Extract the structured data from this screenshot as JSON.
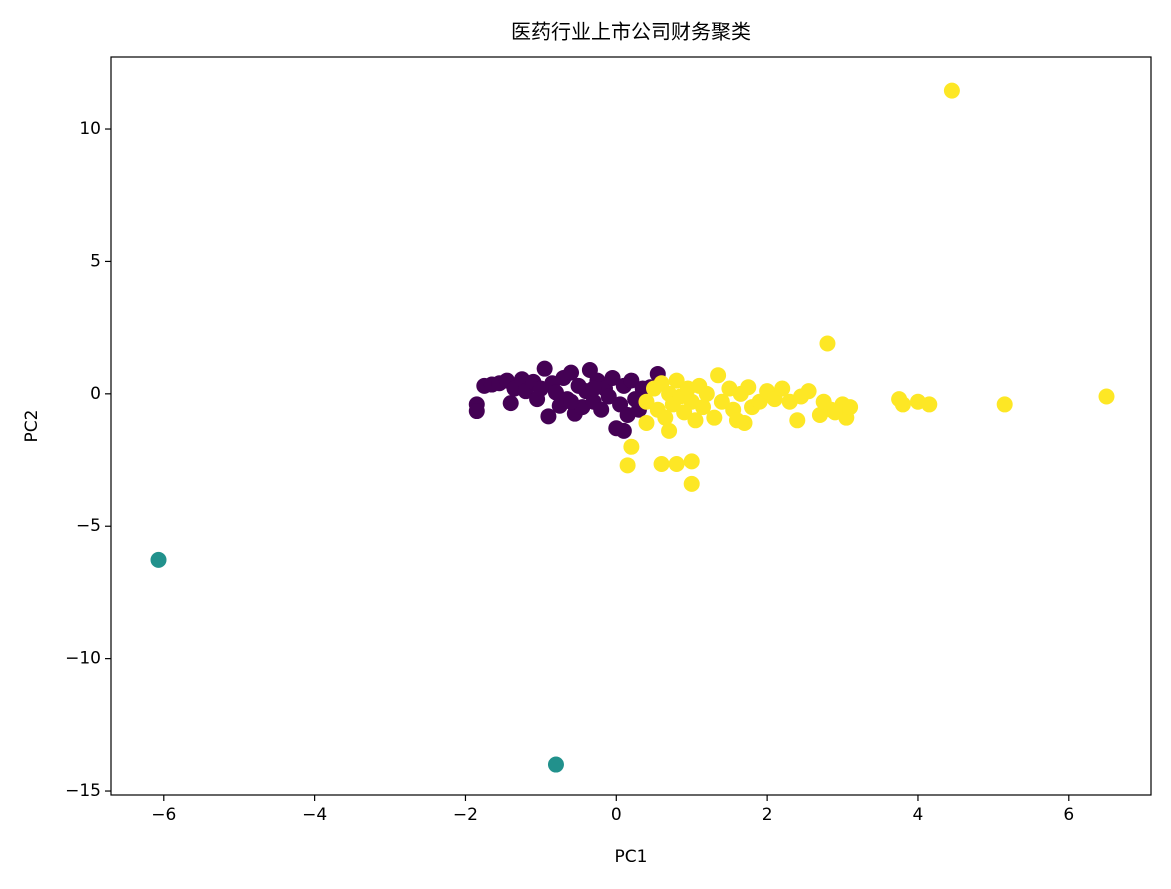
{
  "chart_data": {
    "type": "scatter",
    "title": "医药行业上市公司财务聚类",
    "x_label": "PC1",
    "y_label": "PC2",
    "xlim": [
      -6.7,
      7.09
    ],
    "ylim": [
      -15.15,
      12.72
    ],
    "xticks": [
      {
        "value": -6,
        "label": "−6"
      },
      {
        "value": -4,
        "label": "−4"
      },
      {
        "value": -2,
        "label": "−2"
      },
      0,
      2,
      4,
      6
    ],
    "yticks": [
      {
        "value": -15,
        "label": "−15"
      },
      {
        "value": -10,
        "label": "−10"
      },
      {
        "value": -5,
        "label": "−5"
      },
      0,
      5,
      10
    ],
    "series": [
      {
        "color": "#440154",
        "x": [
          -1.85,
          -1.85,
          -1.75,
          -1.65,
          -1.55,
          -1.45,
          -1.4,
          -1.35,
          -1.25,
          -1.2,
          -1.1,
          -1.05,
          -0.95,
          -0.9,
          -0.85,
          -0.8,
          -0.75,
          -0.7,
          -0.65,
          -0.6,
          -0.55,
          -0.5,
          -0.45,
          -0.4,
          -0.35,
          -0.3,
          -0.25,
          -0.2,
          -0.15,
          -0.1,
          -0.05,
          0.0,
          0.05,
          0.1,
          0.15,
          0.2,
          0.25,
          0.3,
          0.35,
          0.45,
          0.55,
          0.1,
          -0.6,
          -1.0,
          -0.3
        ],
        "values": [
          -0.4,
          -0.65,
          0.3,
          0.35,
          0.4,
          0.5,
          -0.35,
          0.2,
          0.55,
          0.1,
          0.45,
          -0.2,
          0.95,
          -0.85,
          0.4,
          0.05,
          -0.45,
          0.6,
          -0.2,
          0.8,
          -0.75,
          0.3,
          -0.5,
          0.1,
          0.9,
          -0.3,
          0.5,
          -0.6,
          0.2,
          -0.1,
          0.6,
          -1.3,
          -0.4,
          0.3,
          -0.8,
          0.5,
          -0.2,
          -0.6,
          0.2,
          0.25,
          0.75,
          -1.4,
          -0.3,
          0.2,
          0.2
        ]
      },
      {
        "color": "#21918c",
        "x": [
          -6.07,
          -0.8
        ],
        "values": [
          -6.27,
          -14.0
        ]
      },
      {
        "color": "#fde725",
        "x": [
          4.45,
          2.8,
          6.5,
          5.15,
          3.75,
          3.8,
          4.0,
          4.15,
          0.15,
          0.2,
          0.6,
          0.8,
          1.0,
          1.0,
          0.7,
          2.4,
          3.05,
          0.4,
          0.4,
          0.5,
          0.55,
          0.6,
          0.65,
          0.7,
          0.75,
          0.8,
          0.85,
          0.9,
          0.95,
          1.0,
          1.05,
          1.1,
          1.15,
          1.2,
          1.3,
          1.35,
          1.4,
          1.5,
          1.55,
          1.6,
          1.65,
          1.7,
          1.75,
          1.8,
          1.9,
          2.0,
          2.1,
          2.2,
          2.3,
          2.45,
          2.55,
          2.7,
          2.75,
          2.85,
          3.0,
          3.1,
          2.9
        ],
        "values": [
          11.45,
          1.9,
          -0.1,
          -0.4,
          -0.2,
          -0.4,
          -0.3,
          -0.4,
          -2.7,
          -2.0,
          -2.65,
          -2.65,
          -2.55,
          -3.4,
          -1.4,
          -1.0,
          -0.9,
          -0.3,
          -1.1,
          0.2,
          -0.6,
          0.4,
          -0.9,
          0.0,
          -0.4,
          0.5,
          -0.1,
          -0.7,
          0.2,
          -0.3,
          -1.0,
          0.3,
          -0.5,
          0.0,
          -0.9,
          0.7,
          -0.3,
          0.2,
          -0.6,
          -1.0,
          0.0,
          -1.1,
          0.25,
          -0.5,
          -0.3,
          0.1,
          -0.2,
          0.2,
          -0.3,
          -0.1,
          0.1,
          -0.8,
          -0.3,
          -0.6,
          -0.4,
          -0.5,
          -0.7
        ]
      }
    ]
  }
}
